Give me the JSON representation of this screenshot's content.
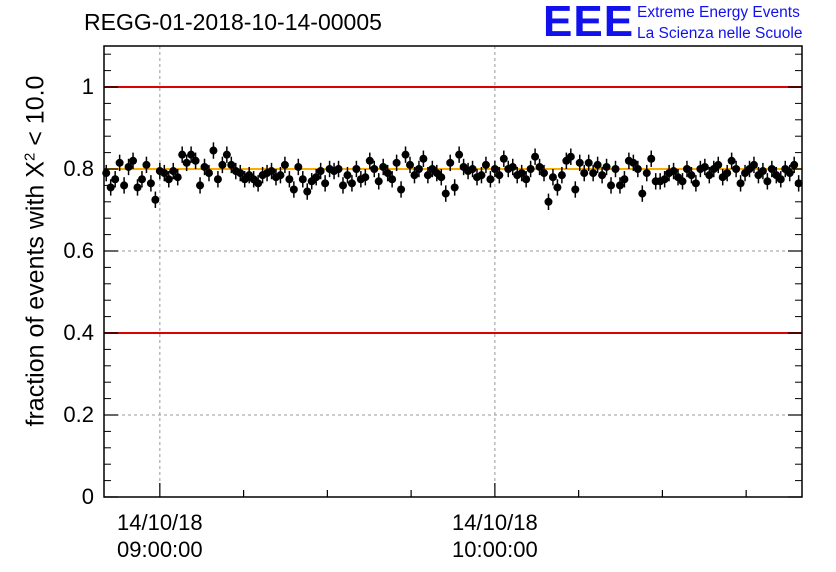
{
  "title": "REGG-01-2018-10-14-00005",
  "logo": {
    "mark": "EEE",
    "line1": "Extreme Energy Events",
    "line2": "La Scienza nelle Scuole"
  },
  "colors": {
    "markers": "#000000",
    "limit_lines": "#dd0000",
    "mean_line": "#ffaa00",
    "logo": "#1111ee"
  },
  "chart_data": {
    "type": "scatter",
    "title": "REGG-01-2018-10-14-00005",
    "ylabel_text": "fraction of events with ",
    "ylabel_symbol": "X",
    "ylabel_sup": "2",
    "ylabel_rest": " < 10.0",
    "ylim": [
      0,
      1.1
    ],
    "yticks": [
      0,
      0.2,
      0.4,
      0.6,
      0.8,
      1
    ],
    "ytick_labels": [
      "0",
      "0.2",
      "0.4",
      "0.6",
      "0.8",
      "1"
    ],
    "x_unit": "minutes after 14/10/18 08:50:00",
    "xlim": [
      0,
      125
    ],
    "xticks": [
      {
        "x": 10,
        "date": "14/10/18",
        "time": "09:00:00"
      },
      {
        "x": 70,
        "date": "14/10/18",
        "time": "10:00:00"
      }
    ],
    "grid": true,
    "reference_lines": [
      {
        "y": 1.0,
        "color": "#dd0000"
      },
      {
        "y": 0.4,
        "color": "#dd0000"
      },
      {
        "y": 0.8,
        "color": "#ffaa00"
      }
    ],
    "error": 0.02,
    "points": [
      [
        0.4,
        0.79
      ],
      [
        1.2,
        0.755
      ],
      [
        2.0,
        0.775
      ],
      [
        2.8,
        0.815
      ],
      [
        3.6,
        0.76
      ],
      [
        4.4,
        0.805
      ],
      [
        5.2,
        0.82
      ],
      [
        6.0,
        0.755
      ],
      [
        6.8,
        0.775
      ],
      [
        7.6,
        0.81
      ],
      [
        8.4,
        0.765
      ],
      [
        9.2,
        0.725
      ],
      [
        10.0,
        0.795
      ],
      [
        10.8,
        0.79
      ],
      [
        11.6,
        0.775
      ],
      [
        12.4,
        0.795
      ],
      [
        13.2,
        0.78
      ],
      [
        14.0,
        0.835
      ],
      [
        14.8,
        0.815
      ],
      [
        15.6,
        0.835
      ],
      [
        16.4,
        0.82
      ],
      [
        17.2,
        0.76
      ],
      [
        18.0,
        0.805
      ],
      [
        18.8,
        0.79
      ],
      [
        19.6,
        0.845
      ],
      [
        20.4,
        0.775
      ],
      [
        21.2,
        0.81
      ],
      [
        22.0,
        0.835
      ],
      [
        22.8,
        0.81
      ],
      [
        23.6,
        0.795
      ],
      [
        24.4,
        0.79
      ],
      [
        25.2,
        0.775
      ],
      [
        26.0,
        0.785
      ],
      [
        26.8,
        0.775
      ],
      [
        27.6,
        0.765
      ],
      [
        28.4,
        0.785
      ],
      [
        29.2,
        0.79
      ],
      [
        30.0,
        0.795
      ],
      [
        30.8,
        0.78
      ],
      [
        31.6,
        0.785
      ],
      [
        32.4,
        0.81
      ],
      [
        33.2,
        0.775
      ],
      [
        34.0,
        0.75
      ],
      [
        34.8,
        0.805
      ],
      [
        35.6,
        0.775
      ],
      [
        36.4,
        0.745
      ],
      [
        37.2,
        0.77
      ],
      [
        38.0,
        0.78
      ],
      [
        38.8,
        0.795
      ],
      [
        39.6,
        0.765
      ],
      [
        40.4,
        0.8
      ],
      [
        41.2,
        0.795
      ],
      [
        42.0,
        0.8
      ],
      [
        42.8,
        0.76
      ],
      [
        43.6,
        0.785
      ],
      [
        44.4,
        0.765
      ],
      [
        45.2,
        0.8
      ],
      [
        46.0,
        0.775
      ],
      [
        46.8,
        0.78
      ],
      [
        47.6,
        0.82
      ],
      [
        48.4,
        0.8
      ],
      [
        49.2,
        0.77
      ],
      [
        50.0,
        0.805
      ],
      [
        50.8,
        0.79
      ],
      [
        51.6,
        0.775
      ],
      [
        52.4,
        0.815
      ],
      [
        53.2,
        0.75
      ],
      [
        54.0,
        0.835
      ],
      [
        54.8,
        0.81
      ],
      [
        55.6,
        0.785
      ],
      [
        56.4,
        0.8
      ],
      [
        57.2,
        0.825
      ],
      [
        58.0,
        0.785
      ],
      [
        58.8,
        0.8
      ],
      [
        59.6,
        0.79
      ],
      [
        60.4,
        0.78
      ],
      [
        61.2,
        0.74
      ],
      [
        62.0,
        0.815
      ],
      [
        62.8,
        0.755
      ],
      [
        63.6,
        0.835
      ],
      [
        64.4,
        0.805
      ],
      [
        65.2,
        0.795
      ],
      [
        66.0,
        0.8
      ],
      [
        66.8,
        0.78
      ],
      [
        67.6,
        0.785
      ],
      [
        68.4,
        0.81
      ],
      [
        69.2,
        0.775
      ],
      [
        70.0,
        0.8
      ],
      [
        70.8,
        0.785
      ],
      [
        71.6,
        0.825
      ],
      [
        72.4,
        0.8
      ],
      [
        73.2,
        0.805
      ],
      [
        74.0,
        0.785
      ],
      [
        74.8,
        0.79
      ],
      [
        75.6,
        0.775
      ],
      [
        76.4,
        0.8
      ],
      [
        77.2,
        0.83
      ],
      [
        78.0,
        0.805
      ],
      [
        78.8,
        0.79
      ],
      [
        79.6,
        0.72
      ],
      [
        80.4,
        0.78
      ],
      [
        81.2,
        0.755
      ],
      [
        82.0,
        0.785
      ],
      [
        82.8,
        0.82
      ],
      [
        83.6,
        0.83
      ],
      [
        84.4,
        0.75
      ],
      [
        85.2,
        0.815
      ],
      [
        86.0,
        0.79
      ],
      [
        86.8,
        0.815
      ],
      [
        87.6,
        0.79
      ],
      [
        88.4,
        0.81
      ],
      [
        89.2,
        0.785
      ],
      [
        90.0,
        0.805
      ],
      [
        90.8,
        0.76
      ],
      [
        91.6,
        0.8
      ],
      [
        92.4,
        0.76
      ],
      [
        93.2,
        0.775
      ],
      [
        94.0,
        0.82
      ],
      [
        94.8,
        0.815
      ],
      [
        95.6,
        0.8
      ],
      [
        96.4,
        0.74
      ],
      [
        97.2,
        0.79
      ],
      [
        98.0,
        0.825
      ],
      [
        98.8,
        0.77
      ],
      [
        99.6,
        0.77
      ],
      [
        100.4,
        0.775
      ],
      [
        101.2,
        0.79
      ],
      [
        102.0,
        0.795
      ],
      [
        102.8,
        0.78
      ],
      [
        103.6,
        0.77
      ],
      [
        104.4,
        0.8
      ],
      [
        105.2,
        0.785
      ],
      [
        106.0,
        0.765
      ],
      [
        106.8,
        0.8
      ],
      [
        107.6,
        0.805
      ],
      [
        108.4,
        0.785
      ],
      [
        109.2,
        0.8
      ],
      [
        110.0,
        0.81
      ],
      [
        110.8,
        0.78
      ],
      [
        111.6,
        0.79
      ],
      [
        112.4,
        0.82
      ],
      [
        113.2,
        0.8
      ],
      [
        114.0,
        0.765
      ],
      [
        114.8,
        0.79
      ],
      [
        115.6,
        0.8
      ],
      [
        116.4,
        0.81
      ],
      [
        117.2,
        0.785
      ],
      [
        118.0,
        0.795
      ],
      [
        118.8,
        0.77
      ],
      [
        119.6,
        0.8
      ],
      [
        120.4,
        0.785
      ],
      [
        121.2,
        0.775
      ],
      [
        122.0,
        0.8
      ],
      [
        122.8,
        0.79
      ],
      [
        123.6,
        0.81
      ],
      [
        124.4,
        0.765
      ]
    ]
  }
}
